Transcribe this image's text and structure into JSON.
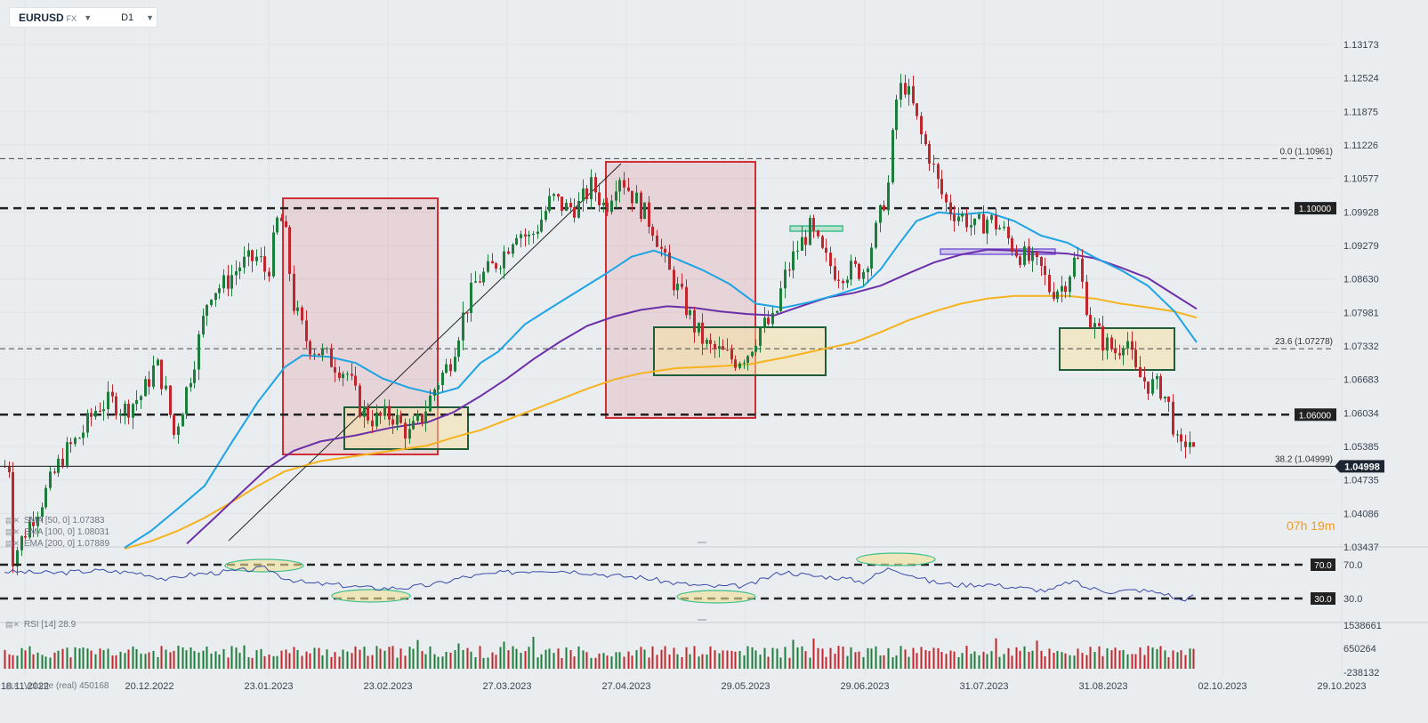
{
  "header": {
    "symbol": "EURUSD",
    "market": "FX",
    "timeframe": "D1"
  },
  "legend": {
    "sma50": "SMA [50, 0]",
    "sma50_value": "1.07383",
    "sma100": "SMA [100, 0]",
    "sma100_value": "1.08031",
    "ema200": "EMA [200, 0]",
    "ema200_value": "1.07889",
    "rsi": "RSI [14]",
    "rsi_value": "28.9",
    "volume": "Volume (real)",
    "volume_value": "450168"
  },
  "countdown": {
    "hours": "07",
    "h_unit": "h",
    "minutes": "19",
    "m_unit": "m"
  },
  "colors": {
    "up": "#1e7c3c",
    "down": "#c0262d",
    "sma50": "#1da4e4",
    "sma100": "#6b2fa8",
    "ema200": "#f5b21d",
    "rsi": "#3a4aa8",
    "box_red": "#cf2f34",
    "box_green": "#1f5c3a"
  },
  "chart_data": {
    "type": "candlestick",
    "price_axis_ticks": [
      "1.13173",
      "1.12524",
      "1.11875",
      "1.11226",
      "1.10577",
      "1.09928",
      "1.09279",
      "1.08630",
      "1.07981",
      "1.07332",
      "1.06683",
      "1.06034",
      "1.05385",
      "1.04735",
      "1.04086",
      "1.03437"
    ],
    "ylim": [
      1.03437,
      1.13173
    ],
    "date_axis_ticks": [
      "18.11.2022",
      "20.12.2022",
      "23.01.2023",
      "23.02.2023",
      "27.03.2023",
      "27.04.2023",
      "29.05.2023",
      "29.06.2023",
      "31.07.2023",
      "31.08.2023",
      "02.10.2023",
      "29.10.2023"
    ],
    "current_price": "1.04998",
    "horizontal_levels": [
      {
        "label": "1.10000",
        "value": 1.1
      },
      {
        "label": "1.06000",
        "value": 1.06
      }
    ],
    "fibonacci": [
      {
        "label": "0.0 (1.10961)",
        "value": 1.10961
      },
      {
        "label": "23.6 (1.07278)",
        "value": 1.07278
      },
      {
        "label": "38.2 (1.04999)",
        "value": 1.04999
      }
    ],
    "rsi": {
      "levels": [
        {
          "label": "70.0",
          "value": 70
        },
        {
          "label": "30.0",
          "value": 30
        }
      ],
      "axis_ticks": [
        "70.0",
        "30.0"
      ],
      "last": 28.9
    },
    "volume_axis_ticks": [
      "1538661",
      "650264",
      "-238132"
    ]
  }
}
